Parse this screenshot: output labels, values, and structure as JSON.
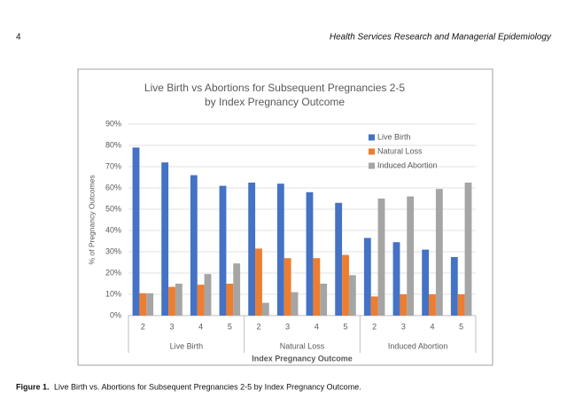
{
  "page": {
    "number": "4",
    "journal": "Health Services Research and Managerial Epidemiology",
    "caption_label": "Figure 1.",
    "caption": "Live Birth vs. Abortions for Subsequent Pregnancies 2-5 by Index Pregnancy Outcome."
  },
  "chart_data": {
    "type": "bar",
    "title": [
      "Live Birth vs Abortions for Subsequent Pregnancies 2-5",
      "by Index Pregnancy Outcome"
    ],
    "x_label": "Index Pregnancy Outcome",
    "y_label": "% of Pregnancy Outcomes",
    "category_groups": [
      "Live Birth",
      "Natural Loss",
      "Induced Abortion"
    ],
    "categories": [
      "2",
      "3",
      "4",
      "5",
      "2",
      "3",
      "4",
      "5",
      "2",
      "3",
      "4",
      "5"
    ],
    "series": [
      {
        "name": "Live Birth",
        "color": "#4472c4",
        "values": [
          79,
          72,
          66,
          61,
          62.5,
          62,
          58,
          53,
          36.5,
          34.5,
          31,
          27.5
        ]
      },
      {
        "name": "Natural Loss",
        "color": "#ed7d31",
        "values": [
          10.5,
          13.5,
          14.5,
          15,
          31.5,
          27,
          27,
          28.5,
          9,
          10,
          10,
          10
        ]
      },
      {
        "name": "Induced Abortion",
        "color": "#a5a5a5",
        "values": [
          10.5,
          15,
          19.5,
          24.5,
          6,
          11,
          15,
          19,
          55,
          56,
          59.5,
          62.5
        ]
      }
    ],
    "ylim": [
      0,
      90
    ],
    "yticks": [
      {
        "value": 0,
        "label": "0%"
      },
      {
        "value": 10,
        "label": "10%"
      },
      {
        "value": 20,
        "label": "20%"
      },
      {
        "value": 30,
        "label": "30%"
      },
      {
        "value": 40,
        "label": "40%"
      },
      {
        "value": 50,
        "label": "50%"
      },
      {
        "value": 60,
        "label": "60%"
      },
      {
        "value": 70,
        "label": "70%"
      },
      {
        "value": 80,
        "label": "80%"
      },
      {
        "value": 90,
        "label": "90%"
      }
    ],
    "grid": true,
    "legend": "upper right"
  }
}
